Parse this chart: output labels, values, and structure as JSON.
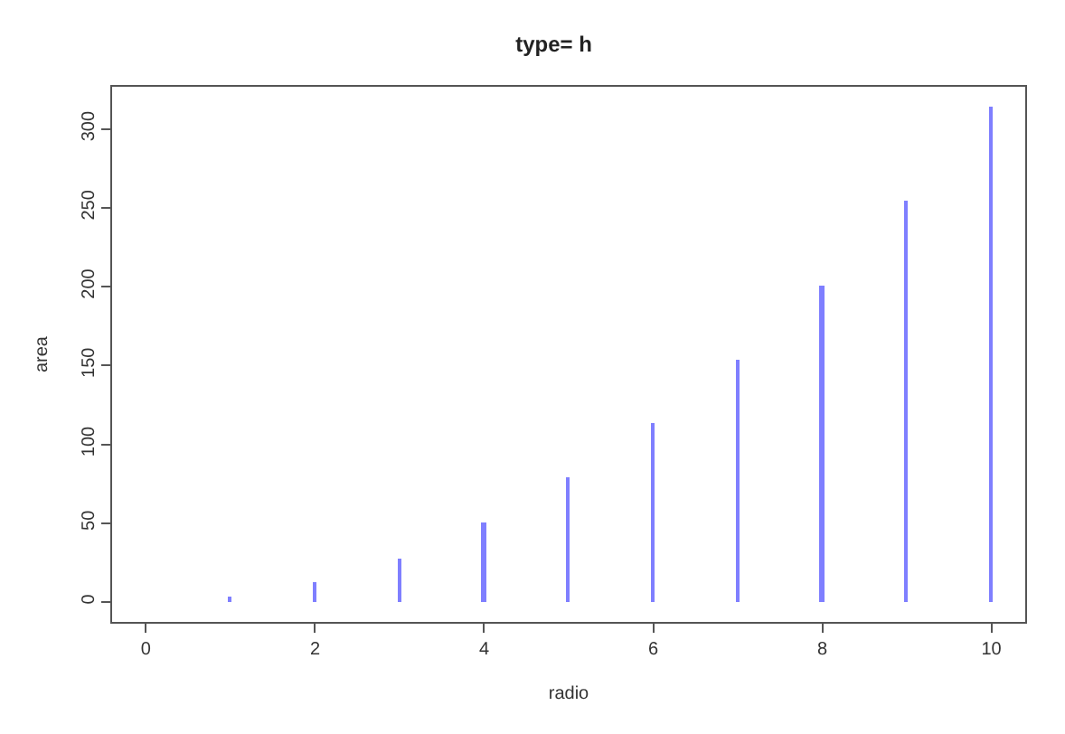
{
  "chart_data": {
    "type": "bar",
    "title": "type= h",
    "xlabel": "radio",
    "ylabel": "area",
    "x": [
      0,
      1,
      2,
      3,
      4,
      5,
      6,
      7,
      8,
      9,
      10
    ],
    "values": [
      0,
      3,
      13,
      28,
      50,
      79,
      113,
      154,
      201,
      254,
      314
    ],
    "color": "#7f7fff",
    "xlim": [
      -0.4,
      10.4
    ],
    "xticks": [
      0,
      2,
      4,
      6,
      8,
      10
    ],
    "ylim": [
      -12.6,
      326.7
    ],
    "yticks": [
      0,
      50,
      100,
      150,
      200,
      250,
      300
    ]
  }
}
